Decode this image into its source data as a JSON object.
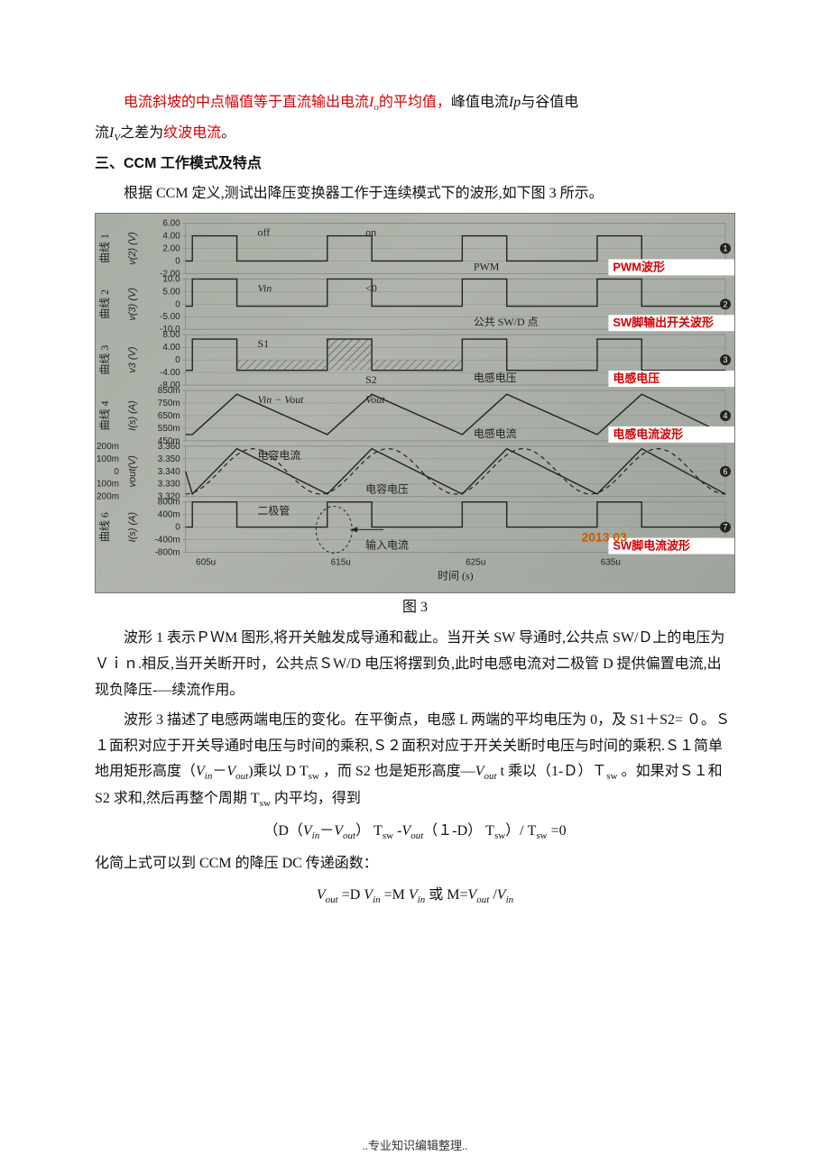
{
  "intro": {
    "line1_pre": "电流斜坡的中点幅值等于直流输出电流",
    "line1_io": "I",
    "line1_io_sub": "o",
    "line1_mid": "的平均值，",
    "line1_post": "峰值电流",
    "line1_ip": "Ip",
    "line1_tail": "与谷值电",
    "line2_pre": "流",
    "line2_iv": "I",
    "line2_iv_sub": "V",
    "line2_mid": "之差为",
    "line2_red": "纹波电流",
    "line2_end": "。"
  },
  "section_heading": "三、CCM 工作模式及特点",
  "section_p1": "根据 CCM 定义,测试出降压变换器工作于连续模式下的波形,如下图 3 所示。",
  "chart": {
    "bg_from": "#a8aea5",
    "bg_to": "#9ea49c",
    "plot_color": "#222222",
    "grid_color": "#888888",
    "red": "#d40000",
    "timestamp": "2013 03",
    "x_label": "时间 (s)",
    "x_ticks": [
      "605u",
      "615u",
      "625u",
      "635u",
      "645u"
    ],
    "rows": [
      {
        "group_cn": "曲线 1",
        "yaxis": "v(2) (V)",
        "ticks": [
          "6.00",
          "4.00",
          "2.00",
          "0",
          "-2.00"
        ],
        "inner_labels": [
          "off",
          "on",
          "PWM"
        ],
        "red_label": "PWM波形",
        "type": "square",
        "sq": {
          "hi": 4.0,
          "lo": 0.0,
          "duty": 0.33,
          "ylim": [
            -2,
            6
          ]
        }
      },
      {
        "group_cn": "曲线 2",
        "yaxis": "v(3) (V)",
        "ticks": [
          "10.0",
          "5.00",
          "0",
          "-5.00",
          "-10.0"
        ],
        "inner_labels": [
          "Vin",
          "<0",
          "公共 SW/D 点"
        ],
        "red_label": "SW脚输出开关波形",
        "type": "square",
        "sq": {
          "hi": 10.0,
          "lo": -0.8,
          "duty": 0.33,
          "ylim": [
            -10,
            10
          ]
        }
      },
      {
        "group_cn": "曲线 3",
        "yaxis": "v3 (V)",
        "ticks": [
          "8.00",
          "4.00",
          "0",
          "-4.00",
          "-8.00"
        ],
        "inner_labels": [
          "S1",
          "S2",
          "电感电压"
        ],
        "red_label": "电感电压",
        "type": "square",
        "sq": {
          "hi": 6.6,
          "lo": -3.3,
          "duty": 0.33,
          "ylim": [
            -8,
            8
          ]
        },
        "hatch": true
      },
      {
        "group_cn": "曲线 4",
        "yaxis": "I(s) (A)",
        "ticks": [
          "850m",
          "750m",
          "650m",
          "550m",
          "450m"
        ],
        "inner_labels": [
          "Vin − Vout",
          "Vout",
          "电感电流"
        ],
        "fracL": "L",
        "red_label": "电感电流波形",
        "type": "triangle",
        "tri": {
          "lo": 500,
          "hi": 820,
          "duty": 0.33,
          "ylim": [
            450,
            850
          ]
        }
      },
      {
        "group_cn": "",
        "yaxis_left": "(mA)",
        "ticks_left": [
          "200m",
          "100m",
          "0",
          "-100m",
          "-200m"
        ],
        "yaxis": "vout(V)",
        "ticks": [
          "3.360",
          "3.350",
          "3.340",
          "3.330",
          "3.320"
        ],
        "inner_labels": [
          "电容电流",
          "电容电压"
        ],
        "red_label": "",
        "type": "overlay",
        "tri": {
          "lo": -180,
          "hi": 180,
          "duty": 0.33,
          "ylim": [
            -200,
            200
          ]
        },
        "sin": {
          "amp": 0.018,
          "mid": 3.34,
          "ylim": [
            3.32,
            3.36
          ]
        }
      },
      {
        "group_cn": "曲线 6",
        "yaxis": "I(s) (A)",
        "ticks": [
          "800m",
          "400m",
          "0",
          "-400m",
          "-800m"
        ],
        "inner_labels": [
          "二极管",
          "输入电流"
        ],
        "red_label": "SW脚电流波形",
        "type": "pulse",
        "sq": {
          "hi": 800,
          "lo": 0,
          "duty": 0.33,
          "ylim": [
            -800,
            800
          ]
        },
        "dash_ellipse": true
      }
    ]
  },
  "fig_caption": "图 3",
  "body": {
    "p2": "波形 1 表示ＰＷM 图形,将开关触发成导通和截止。当开关 SW 导通时,公共点 SW/Ｄ上的电压为Ｖｉｎ.相反,当开关断开时，公共点ＳW/D 电压将摆到负,此时电感电流对二极管 D 提供偏置电流,出现负降压-—续流作用。",
    "p3_a": "波形 3 描述了电感两端电压的变化。在平衡点，电感 L 两端的平均电压为 0，及 S1＋S2= ０。Ｓ１面积对应于开关导通时电压与时间的乘积,Ｓ２面积对应于开关关断时电压与时间的乘积.Ｓ１简单地用矩形高度（",
    "p3_vin": "V",
    "p3_vin_sub": "in",
    "p3_minus": "－",
    "p3_vout": "V",
    "p3_vout_sub": "out",
    "p3_b": ")乘以 D T",
    "p3_tsw_sub": "sw",
    "p3_c": " ，而 S2 也是矩形高度—",
    "p3_vout2": "V",
    "p3_vout2_sub": "out",
    "p3_d": " t 乘以（1-Ｄ）Ｔ",
    "p3_tsw2_sub": "sw",
    "p3_e": " 。如果对Ｓ１和 S2 求和,然后再整个周期 T",
    "p3_tsw3_sub": "sw",
    "p3_f": " 内平均，得到"
  },
  "eq1": {
    "pre": "（D（",
    "vin": "V",
    "vin_sub": "in",
    "minus": "－",
    "vout": "V",
    "vout_sub": "out",
    "mid1": "） T",
    "tsw1_sub": "sw",
    "mid2": " -",
    "vout2": "V",
    "vout2_sub": "out",
    "mid3": "（１-D） T",
    "tsw2_sub": "sw",
    "mid4": "）/ T",
    "tsw3_sub": "sw",
    "tail": " =0"
  },
  "p4": "化简上式可以到 CCM 的降压 DC 传递函数：",
  "eq2": {
    "vout": "V",
    "vout_sub": "out",
    "eq1": " =D ",
    "vin": "V",
    "vin_sub": "in",
    "eq2": " =M ",
    "vin2": "V",
    "vin2_sub": "in",
    "or": " 或 M=",
    "vout2": "V",
    "vout2_sub": "out",
    "slash": " /",
    "vin3": "V",
    "vin3_sub": "in"
  },
  "footer": "..专业知识编辑整理.."
}
